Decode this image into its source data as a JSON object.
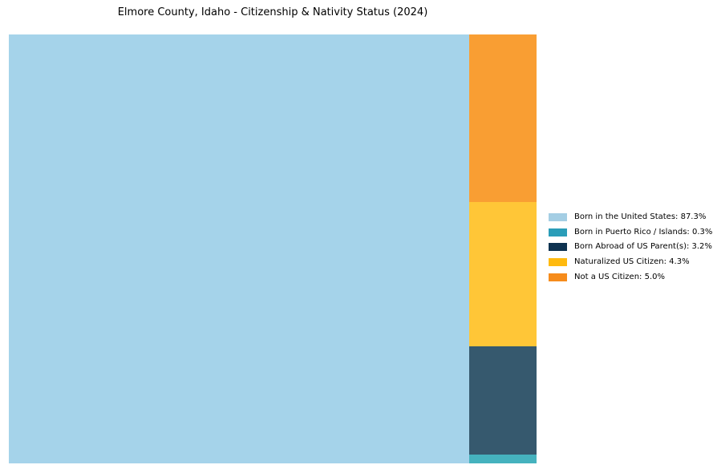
{
  "title": "Elmore County, Idaho - Citizenship & Nativity Status (2024)",
  "treemap": {
    "blocks": {
      "born_us": {
        "label": "Born in the United States",
        "value_pct": 87.3,
        "fill": "#A5D3EA"
      },
      "not_citizen": {
        "label": "Not a US Citizen",
        "value_pct": 5.0,
        "fill": "#F99E33"
      },
      "naturalized": {
        "label": "Naturalized US Citizen",
        "value_pct": 4.3,
        "fill": "#FFC637"
      },
      "born_abroad": {
        "label": "Born Abroad of US Parent(s)",
        "value_pct": 3.2,
        "fill": "#36596E"
      },
      "born_pr": {
        "label": "Born in Puerto Rico / Islands",
        "value_pct": 0.3,
        "fill": "#45B2BE"
      }
    }
  },
  "legend": {
    "items": [
      {
        "label": "Born in the United States: 87.3%",
        "swatch_color": "#A4CEE4"
      },
      {
        "label": "Born in Puerto Rico / Islands: 0.3%",
        "swatch_color": "#2A9DB8"
      },
      {
        "label": "Born Abroad of US Parent(s): 3.2%",
        "swatch_color": "#0E3250"
      },
      {
        "label": "Naturalized US Citizen: 4.3%",
        "swatch_color": "#FFBA0F"
      },
      {
        "label": "Not a US Citizen: 5.0%",
        "swatch_color": "#F68C1C"
      }
    ]
  },
  "chart_data": {
    "type": "treemap",
    "title": "Elmore County, Idaho - Citizenship & Nativity Status (2024)",
    "categories": [
      "Born in the United States",
      "Born in Puerto Rico / Islands",
      "Born Abroad of US Parent(s)",
      "Naturalized US Citizen",
      "Not a US Citizen"
    ],
    "values": [
      87.3,
      0.3,
      3.2,
      4.3,
      5.0
    ],
    "units": "percent",
    "legend_position": "right of chart",
    "legend_labels": [
      "Born in the United States: 87.3%",
      "Born in Puerto Rico / Islands: 0.3%",
      "Born Abroad of US Parent(s): 3.2%",
      "Naturalized US Citizen: 4.3%",
      "Not a US Citizen: 5.0%"
    ],
    "layout": "single large block left (Born in the United States); right column top-to-bottom: Not a US Citizen, Naturalized US Citizen, Born Abroad of US Parent(s), Born in Puerto Rico / Islands",
    "colors": {
      "Born in the United States": "#A5D3EA",
      "Born in Puerto Rico / Islands": "#45B2BE",
      "Born Abroad of US Parent(s)": "#36596E",
      "Naturalized US Citizen": "#FFC637",
      "Not a US Citizen": "#F99E33"
    },
    "grid": false,
    "axes": false
  }
}
